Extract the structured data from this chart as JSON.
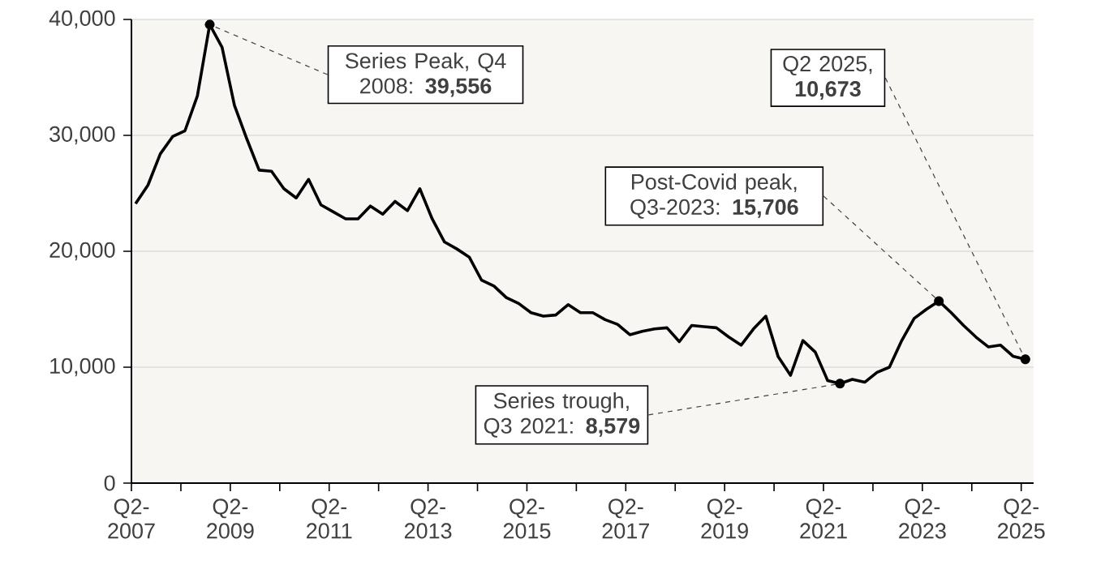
{
  "chart_data": {
    "type": "line",
    "x": [
      "2007-05",
      "2007-08",
      "2007-11",
      "2008-02",
      "2008-05",
      "2008-08",
      "2008-11",
      "2009-02",
      "2009-05",
      "2009-08",
      "2009-11",
      "2010-02",
      "2010-05",
      "2010-08",
      "2010-11",
      "2011-02",
      "2011-05",
      "2011-08",
      "2011-11",
      "2012-02",
      "2012-05",
      "2012-08",
      "2012-11",
      "2013-02",
      "2013-05",
      "2013-08",
      "2013-11",
      "2014-02",
      "2014-05",
      "2014-08",
      "2014-11",
      "2015-02",
      "2015-05",
      "2015-08",
      "2015-11",
      "2016-02",
      "2016-05",
      "2016-08",
      "2016-11",
      "2017-02",
      "2017-05",
      "2017-08",
      "2017-11",
      "2018-02",
      "2018-05",
      "2018-08",
      "2018-11",
      "2019-02",
      "2019-05",
      "2019-08",
      "2019-11",
      "2020-02",
      "2020-05",
      "2020-08",
      "2020-11",
      "2021-02",
      "2021-05",
      "2021-08",
      "2021-11",
      "2022-02",
      "2022-05",
      "2022-08",
      "2022-11",
      "2023-02",
      "2023-05",
      "2023-08",
      "2023-11",
      "2024-02",
      "2024-05",
      "2024-08",
      "2024-11",
      "2025-02",
      "2025-05"
    ],
    "series": [
      {
        "color": "#000000",
        "values": [
          24100,
          25700,
          28400,
          29900,
          30400,
          33400,
          39556,
          37600,
          32600,
          29700,
          27000,
          26900,
          25400,
          24600,
          26200,
          24000,
          23400,
          22800,
          22800,
          23900,
          23200,
          24300,
          23500,
          25400,
          22800,
          20800,
          20200,
          19500,
          17500,
          17000,
          16000,
          15500,
          14700,
          14400,
          14500,
          15400,
          14700,
          14700,
          14100,
          13700,
          12800,
          13100,
          13300,
          13400,
          12200,
          13600,
          13500,
          13400,
          12600,
          11900,
          13300,
          14400,
          10900,
          9300,
          12300,
          11300,
          8850,
          8579,
          8950,
          8700,
          9550,
          10000,
          12300,
          14200,
          15000,
          15706,
          14700,
          13600,
          12600,
          11750,
          11900,
          10950,
          10673
        ]
      }
    ],
    "xlim": [
      "2007-04",
      "2025-07"
    ],
    "xticks": [
      {
        "value": "2007-04",
        "label": "Q2-2007"
      },
      {
        "value": "2008-04",
        "label": null
      },
      {
        "value": "2009-04",
        "label": "Q2-2009"
      },
      {
        "value": "2010-04",
        "label": null
      },
      {
        "value": "2011-04",
        "label": "Q2-2011"
      },
      {
        "value": "2012-04",
        "label": null
      },
      {
        "value": "2013-04",
        "label": "Q2-2013"
      },
      {
        "value": "2014-04",
        "label": null
      },
      {
        "value": "2015-04",
        "label": "Q2-2015"
      },
      {
        "value": "2016-04",
        "label": null
      },
      {
        "value": "2017-04",
        "label": "Q2-2017"
      },
      {
        "value": "2018-04",
        "label": null
      },
      {
        "value": "2019-04",
        "label": "Q2-2019"
      },
      {
        "value": "2020-04",
        "label": null
      },
      {
        "value": "2021-04",
        "label": "Q2-2021"
      },
      {
        "value": "2022-04",
        "label": null
      },
      {
        "value": "2023-04",
        "label": "Q2-2023"
      },
      {
        "value": "2024-04",
        "label": null
      },
      {
        "value": "2025-04",
        "label": "Q2-2025"
      }
    ],
    "ylim": [
      0,
      40000
    ],
    "yticks": [
      0,
      {
        "value": 10000,
        "label": "10,000"
      },
      {
        "value": 20000,
        "label": "20,000"
      },
      {
        "value": 30000,
        "label": "30,000"
      },
      {
        "value": 40000,
        "label": "40,000"
      }
    ],
    "grid": "y",
    "annotations": [
      {
        "text": "Series Peak, Q4 2008: **39,556**",
        "x": "2008-11",
        "y": 39556
      },
      {
        "text": "Post-Covid peak, Q3-2023: **15,706**",
        "x": "2023-08",
        "y": 15706
      },
      {
        "text": "Q2 2025, **10,673**",
        "x": "2025-05",
        "y": 10673
      },
      {
        "text": "Series trough, Q3 2021: **8,579**",
        "x": "2021-08",
        "y": 8579
      }
    ]
  }
}
